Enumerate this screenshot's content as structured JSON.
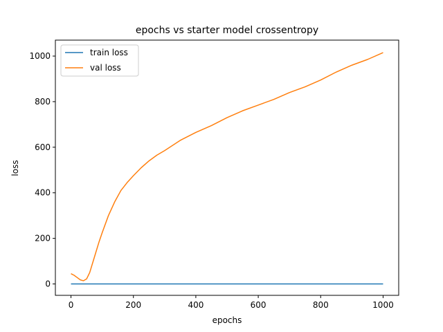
{
  "chart_data": {
    "type": "line",
    "title": "epochs vs starter model crossentropy",
    "xlabel": "epochs",
    "ylabel": "loss",
    "xlim": [
      -50,
      1050
    ],
    "ylim": [
      -50,
      1070
    ],
    "xticks": [
      0,
      200,
      400,
      600,
      800,
      1000
    ],
    "yticks": [
      0,
      200,
      400,
      600,
      800,
      1000
    ],
    "grid": false,
    "legend_position": "top-left",
    "series": [
      {
        "name": "train loss",
        "color": "#1f77b4",
        "x": [
          0,
          100,
          200,
          300,
          400,
          500,
          600,
          700,
          800,
          900,
          1000
        ],
        "y": [
          0,
          0,
          0,
          0,
          0,
          0,
          0,
          0,
          0,
          0,
          0
        ]
      },
      {
        "name": "val loss",
        "color": "#ff7f0e",
        "x": [
          0,
          10,
          20,
          30,
          40,
          50,
          60,
          70,
          80,
          90,
          100,
          120,
          140,
          160,
          180,
          200,
          225,
          250,
          275,
          300,
          350,
          400,
          450,
          500,
          550,
          600,
          650,
          700,
          750,
          800,
          850,
          900,
          950,
          1000
        ],
        "y": [
          45,
          38,
          28,
          18,
          14,
          22,
          50,
          95,
          140,
          185,
          225,
          300,
          360,
          410,
          445,
          475,
          510,
          540,
          565,
          585,
          630,
          665,
          695,
          730,
          760,
          785,
          810,
          840,
          865,
          895,
          930,
          960,
          985,
          1015
        ]
      }
    ]
  }
}
